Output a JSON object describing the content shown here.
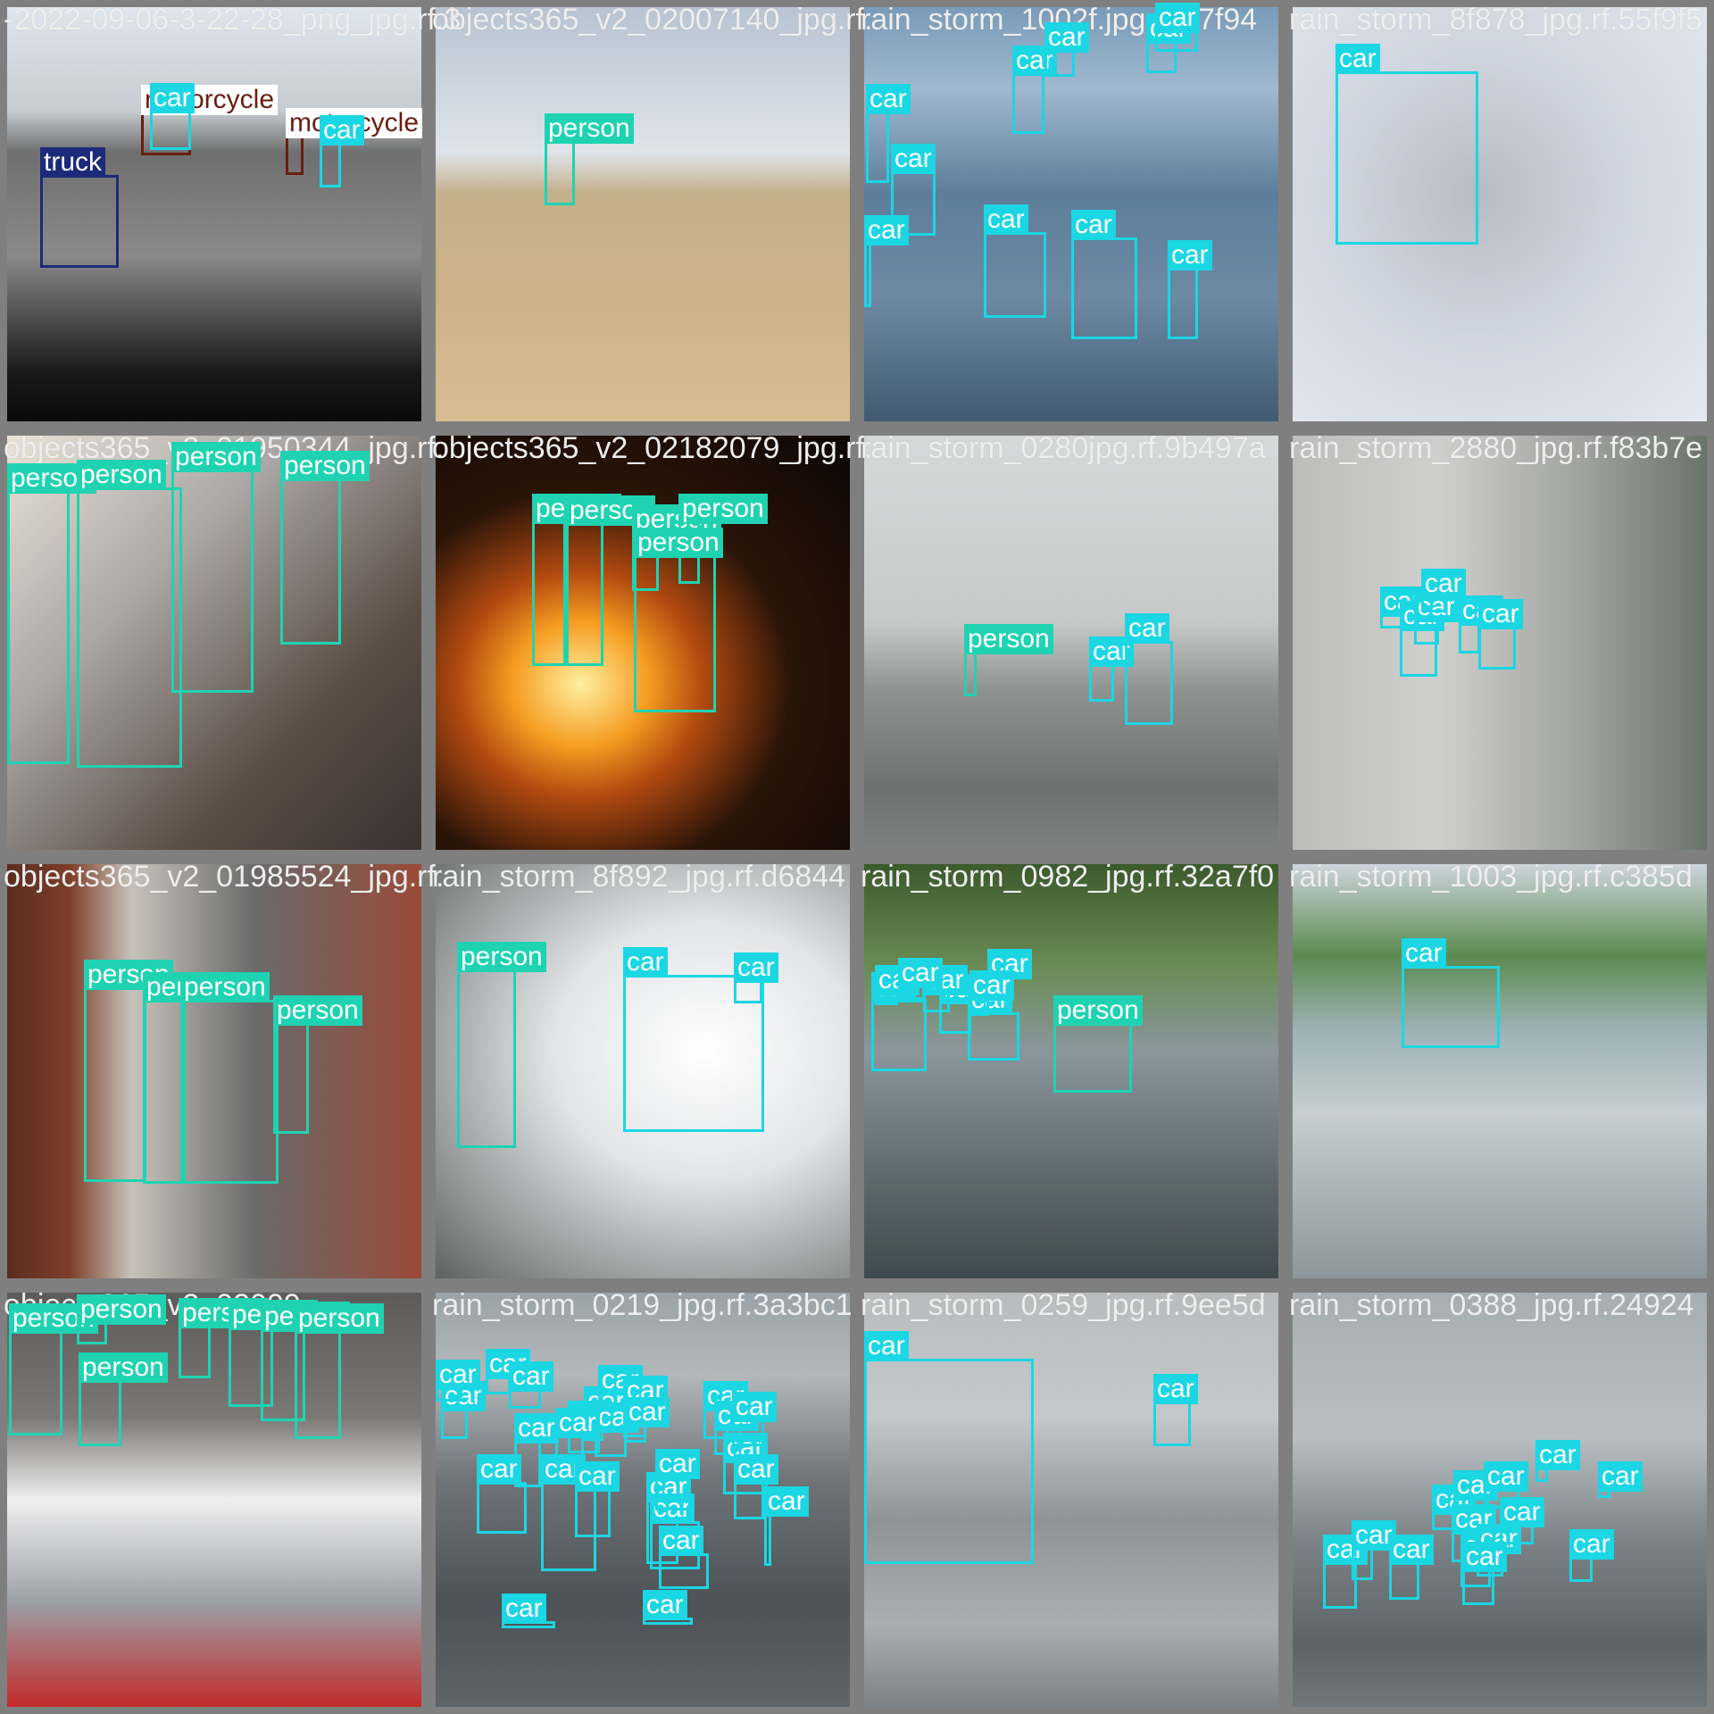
{
  "colors": {
    "car": "#1bd6e3",
    "person": "#1fd3b2",
    "truck": "#1c2a7a",
    "motorcycle": "#6b1d10",
    "background": "#7f7f7f"
  },
  "tiles": [
    {
      "filename": "-2022-09-06-3-22-28_png_jpg.rf.3",
      "labels": [
        "truck",
        "motorcycle",
        "car",
        "motorcycle",
        "car"
      ]
    },
    {
      "filename": "objects365_v2_02007140_jpg.rf.",
      "labels": [
        "person"
      ]
    },
    {
      "filename": "rain_storm_1002f.jpg.rf.b7f94",
      "labels": [
        "car",
        "car",
        "car",
        "car",
        "car",
        "car",
        "car",
        "car",
        "car",
        "car"
      ]
    },
    {
      "filename": "rain_storm_8f878_jpg.rf.55f9f5",
      "labels": [
        "car"
      ]
    },
    {
      "filename": "objects365_v2_01950344_jpg.rf.",
      "labels": [
        "person",
        "person",
        "person",
        "person"
      ]
    },
    {
      "filename": "objects365_v2_02182079_jpg.rf.",
      "labels": [
        "person",
        "person",
        "person",
        "person",
        "person"
      ]
    },
    {
      "filename": "rain_storm_0280jpg.rf.9b497a",
      "labels": [
        "person",
        "car",
        "car"
      ]
    },
    {
      "filename": "rain_storm_2880_jpg.rf.f83b7e",
      "labels": [
        "car",
        "car",
        "car",
        "car",
        "car",
        "car"
      ]
    },
    {
      "filename": "objects365_v2_01985524_jpg.rf.",
      "labels": [
        "person",
        "person",
        "person",
        "person"
      ]
    },
    {
      "filename": "rain_storm_8f892_jpg.rf.d6844",
      "labels": [
        "person",
        "car",
        "car"
      ]
    },
    {
      "filename": "rain_storm_0982_jpg.rf.32a7f0",
      "labels": [
        "car",
        "car",
        "car",
        "car",
        "car",
        "car",
        "car",
        "car",
        "person"
      ]
    },
    {
      "filename": "rain_storm_1003_jpg.rf.c385d",
      "labels": [
        "car"
      ]
    },
    {
      "filename": "objects365_v2_02009",
      "labels": [
        "person",
        "person",
        "person",
        "person",
        "person",
        "person",
        "person"
      ]
    },
    {
      "filename": "rain_storm_0219_jpg.rf.3a3bc1",
      "labels": [
        "car",
        "car",
        "car",
        "car",
        "car",
        "car",
        "car",
        "car",
        "car",
        "car",
        "car",
        "car",
        "car",
        "car",
        "car",
        "car",
        "car",
        "car",
        "car",
        "car",
        "car",
        "car",
        "car",
        "car",
        "car",
        "car",
        "car"
      ]
    },
    {
      "filename": "rain_storm_0259_jpg.rf.9ee5d",
      "labels": [
        "car",
        "car"
      ]
    },
    {
      "filename": "rain_storm_0388_jpg.rf.24924",
      "labels": [
        "car",
        "car",
        "car",
        "car",
        "car",
        "car",
        "car",
        "car",
        "car",
        "car",
        "car",
        "car",
        "car",
        "car"
      ]
    }
  ]
}
